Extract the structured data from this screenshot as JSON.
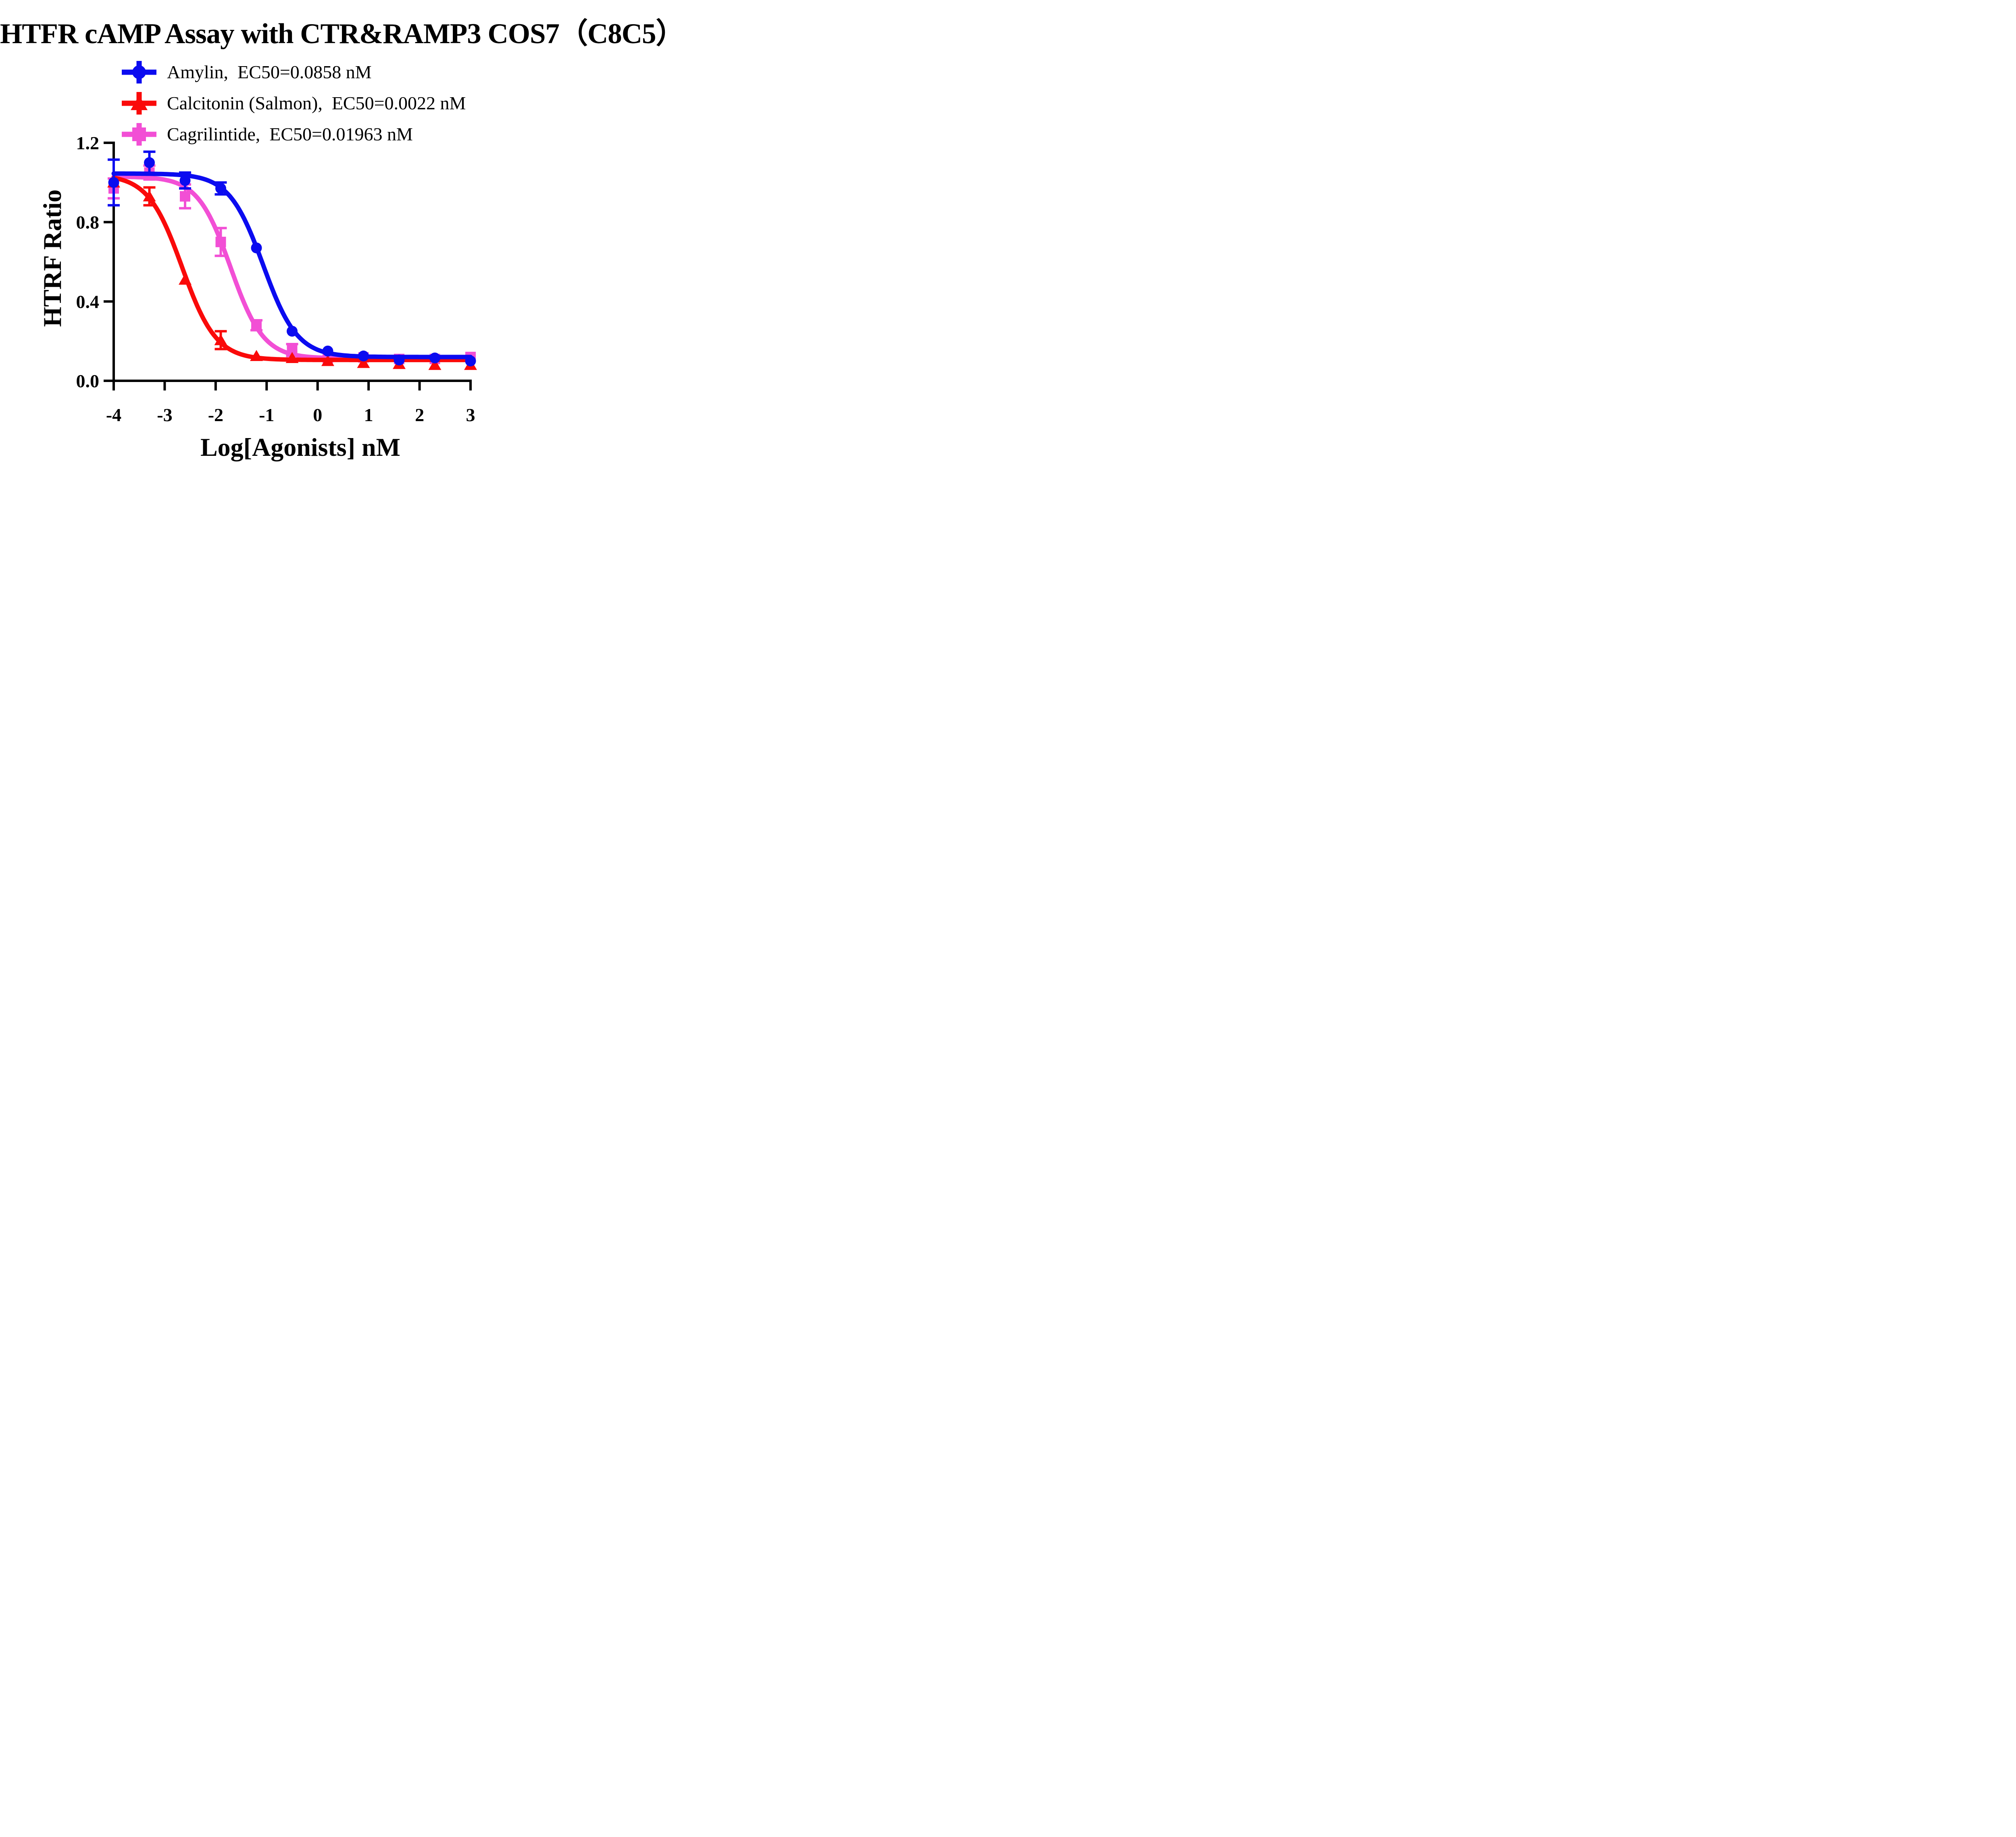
{
  "chart_data": {
    "type": "line",
    "title": "HTFR cAMP Assay with CTR&RAMP3 COS7（C8C5）",
    "xlabel": "Log[Agonists] nM",
    "ylabel": "HTRF Ratio",
    "xlim": [
      -4,
      3
    ],
    "ylim": [
      0,
      1.2
    ],
    "x_ticks": [
      -4,
      -3,
      -2,
      -1,
      0,
      1,
      2,
      3
    ],
    "x_tick_labels": [
      "-4",
      "-3",
      "-2",
      "-1",
      "0",
      "1",
      "2",
      "3"
    ],
    "y_ticks": [
      0.0,
      0.4,
      0.8,
      1.2
    ],
    "y_tick_labels": [
      "0.0",
      "0.4",
      "0.8",
      "1.2"
    ],
    "grid": false,
    "legend_position": "above-plot-left",
    "axis_color": "#000000",
    "x": [
      -4,
      -3.3,
      -2.6,
      -1.9,
      -1.2,
      -0.5,
      0.2,
      0.9,
      1.6,
      2.3,
      3
    ],
    "series": [
      {
        "name": "Amylin",
        "ec50_label": "EC50=0.0858 nM",
        "legend_label": "Amylin,  EC50=0.0858 nM",
        "marker": "circle",
        "color": "#0b0bf0",
        "values": [
          1.0,
          1.1,
          1.01,
          0.97,
          0.67,
          0.25,
          0.15,
          0.125,
          0.105,
          0.115,
          0.1
        ],
        "errors": [
          0.115,
          0.055,
          0.04,
          0.03,
          0,
          0,
          0,
          0,
          0,
          0,
          0
        ],
        "fit": {
          "top": 1.045,
          "bottom": 0.12,
          "logec50": -1.0665,
          "hill": 1.3
        }
      },
      {
        "name": "Calcitonin (Salmon)",
        "ec50_label": "EC50=0.0022 nM",
        "legend_label": "Calcitonin (Salmon),  EC50=0.0022 nM",
        "marker": "triangle",
        "color": "#fa0a0a",
        "values": [
          1.0,
          0.93,
          0.51,
          0.205,
          0.125,
          0.115,
          0.1,
          0.09,
          0.085,
          0.08,
          0.08
        ],
        "errors": [
          0,
          0.045,
          0,
          0.045,
          0,
          0,
          0,
          0,
          0,
          0,
          0
        ],
        "fit": {
          "top": 1.04,
          "bottom": 0.105,
          "logec50": -2.6576,
          "hill": 1.3
        }
      },
      {
        "name": "Cagrilintide",
        "ec50_label": "EC50=0.01963 nM",
        "legend_label": "Cagrilintide,  EC50=0.01963 nM",
        "marker": "square",
        "color": "#f24fd5",
        "values": [
          0.97,
          1.05,
          0.93,
          0.7,
          0.28,
          0.155,
          0.115,
          0.118,
          0.11,
          0.11,
          0.12
        ],
        "errors": [
          0.05,
          0.035,
          0.06,
          0.07,
          0.025,
          0.03,
          0,
          0,
          0,
          0,
          0
        ],
        "fit": {
          "top": 1.03,
          "bottom": 0.113,
          "logec50": -1.7071,
          "hill": 1.35
        }
      }
    ]
  }
}
